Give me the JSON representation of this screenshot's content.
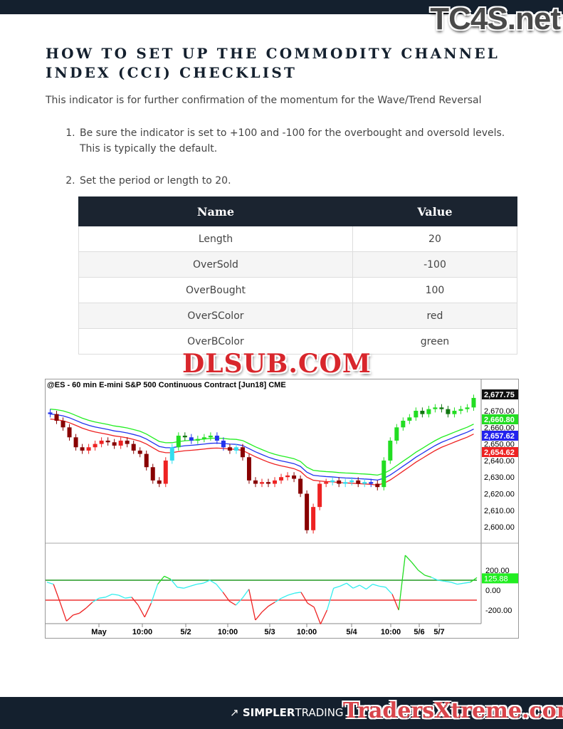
{
  "watermarks": {
    "top": "TC4S.net",
    "middle": "DLSUB.COM",
    "bottom": "TradersXtreme.com"
  },
  "title": "How to set up the Commodity Channel Index (CCI) Checklist",
  "intro": "This indicator is for further confirmation of the momentum for the Wave/Trend Reversal",
  "steps": [
    "Be sure the indicator is set to +100 and -100 for the overbought and oversold levels. This is typically the default.",
    "Set the period or length to 20."
  ],
  "table": {
    "headers": [
      "Name",
      "Value"
    ],
    "rows": [
      [
        "Length",
        "20"
      ],
      [
        "OverSold",
        "-100"
      ],
      [
        "OverBought",
        "100"
      ],
      [
        "OverSColor",
        "red"
      ],
      [
        "OverBColor",
        "green"
      ]
    ]
  },
  "chart_data": {
    "type": "candlestick",
    "title": "@ES - 60 min  E-mini S&P 500 Continuous Contract [Jun18]  CME",
    "price_ticks": [
      "2,670.00",
      "2,660.00",
      "2,650.00",
      "2,640.00",
      "2,630.00",
      "2,620.00",
      "2,610.00",
      "2,600.00"
    ],
    "price_tick_values": [
      2670,
      2660,
      2650,
      2640,
      2630,
      2620,
      2610,
      2600
    ],
    "ylim": [
      2592,
      2682
    ],
    "last_labels": [
      {
        "text": "2,677.75",
        "color": "#111111"
      },
      {
        "text": "2,660.80",
        "color": "#22dd22"
      },
      {
        "text": "2,657.62",
        "color": "#2222ee"
      },
      {
        "text": "2,654.62",
        "color": "#ee2222"
      }
    ],
    "x_ticks": [
      "May",
      "10:00",
      "5/2",
      "10:00",
      "5/3",
      "10:00",
      "5/4",
      "10:00",
      "5/6",
      "5/7"
    ],
    "closes": [
      2668,
      2664,
      2660,
      2654,
      2648,
      2646,
      2648,
      2650,
      2652,
      2651,
      2649,
      2652,
      2650,
      2646,
      2644,
      2636,
      2628,
      2626,
      2640,
      2648,
      2655,
      2654,
      2652,
      2653,
      2654,
      2655,
      2652,
      2648,
      2646,
      2648,
      2642,
      2628,
      2626,
      2627,
      2626,
      2628,
      2630,
      2631,
      2629,
      2620,
      2598,
      2612,
      2626,
      2627,
      2628,
      2626,
      2627,
      2628,
      2626,
      2627,
      2626,
      2624,
      2640,
      2652,
      2660,
      2664,
      2666,
      2670,
      2668,
      2671,
      2672,
      2671,
      2668,
      2670,
      2671,
      2672,
      2677.75
    ],
    "bands": {
      "upper_color": "#22ee22",
      "middle_color": "#2233ee",
      "lower_color": "#ee2222"
    },
    "cci": {
      "yticks": [
        "200.00",
        "0.00",
        "-200.00"
      ],
      "ytick_values": [
        200,
        0,
        -200
      ],
      "overbought": 100,
      "oversold": -100,
      "last_label": "125.88",
      "values": [
        80,
        60,
        -120,
        -310,
        -250,
        -230,
        -180,
        -120,
        -80,
        -70,
        -40,
        -50,
        -80,
        -70,
        -150,
        -270,
        -130,
        60,
        140,
        110,
        30,
        20,
        40,
        60,
        70,
        100,
        60,
        -20,
        -110,
        -150,
        -80,
        10,
        -300,
        -220,
        -160,
        -120,
        -80,
        -50,
        -30,
        -20,
        -130,
        -170,
        -340,
        -200,
        20,
        40,
        70,
        20,
        50,
        10,
        60,
        40,
        30,
        -40,
        -200,
        350,
        280,
        200,
        150,
        130,
        100,
        90,
        80,
        60,
        70,
        80,
        125.88
      ]
    }
  },
  "footer": {
    "brand_bold": "SIMPLER",
    "brand_light": "TRADING"
  }
}
